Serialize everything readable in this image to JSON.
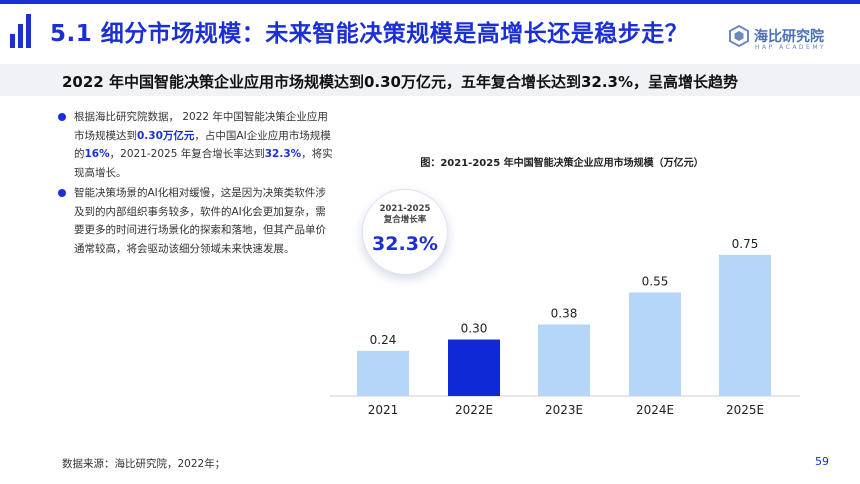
{
  "header": {
    "title": "5.1 细分市场规模：未来智能决策规模是高增长还是稳步走？",
    "logo_text": "海比研究院",
    "logo_sub": "HAP ACADEMY"
  },
  "subtitle": "2022 年中国智能决策企业应用市场规模达到0.30万亿元，五年复合增长达到32.3%，呈高增长趋势",
  "bullets": [
    {
      "t1": "根据海比研究院数据， 2022 年中国智能决策企业应用市场规模达到",
      "h1": "0.30万亿元",
      "t2": "，占中国AI企业应用市场规模的",
      "h2": "16%",
      "t3": "，2021-2025 年复合增长率达到",
      "h3": "32.3%",
      "t4": "，将实现高增长。"
    },
    {
      "text": "智能决策场景的AI化相对缓慢，这是因为决策类软件涉及到的内部组织事务较多，软件的AI化会更加复杂，需要更多的时间进行场景化的探索和落地，但其产品单价通常较高，将会驱动该细分领域未来快速发展。"
    }
  ],
  "badge": {
    "line1": "2021-2025",
    "line2": "复合增长率",
    "value": "32.3%"
  },
  "chart_data": {
    "type": "bar",
    "title": "图：2021-2025 年中国智能决策企业应用市场规模（万亿元）",
    "categories": [
      "2021",
      "2022E",
      "2023E",
      "2024E",
      "2025E"
    ],
    "values": [
      0.24,
      0.3,
      0.38,
      0.55,
      0.75
    ],
    "value_labels": [
      "0.24",
      "0.30",
      "0.38",
      "0.55",
      "0.75"
    ],
    "ylim": [
      0,
      0.85
    ],
    "grid": false,
    "colors": [
      "#b5d6f6",
      "#1029d6",
      "#b5d6f6",
      "#b5d6f6",
      "#b5d6f6"
    ]
  },
  "footer": {
    "source": "数据来源：海比研究院，2022年；",
    "page": "59"
  },
  "colors": {
    "accent": "#1b2fd6",
    "bar_light": "#b5d6f6",
    "bar_highlight": "#1029d6"
  }
}
